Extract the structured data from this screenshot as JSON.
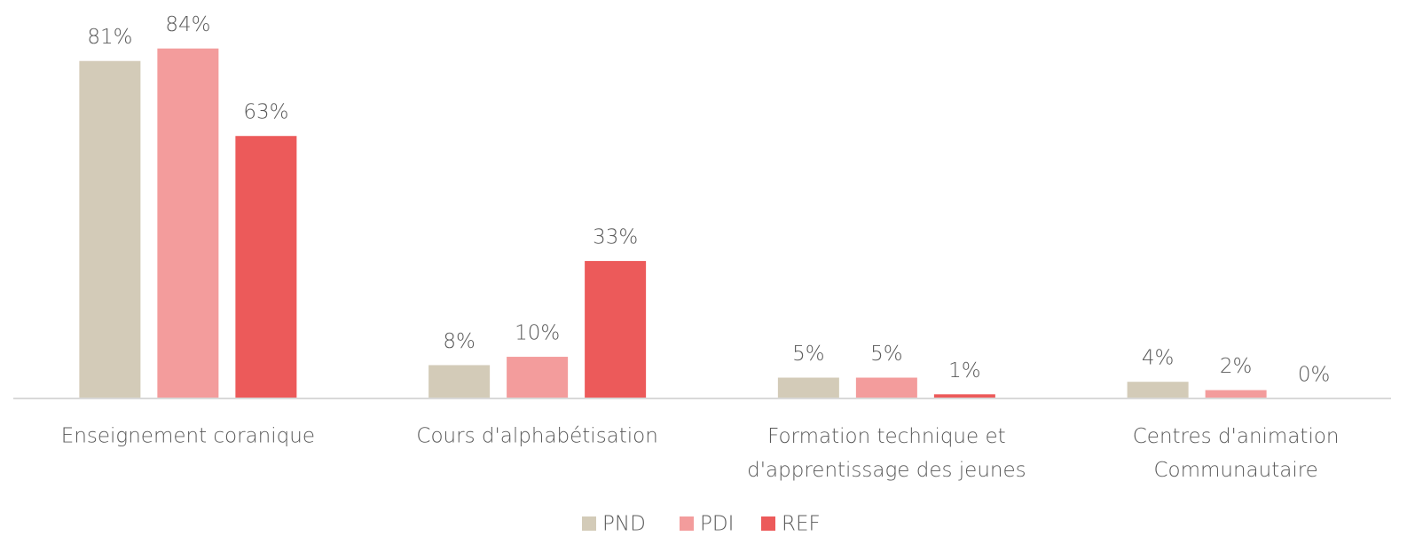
{
  "chart_data": {
    "type": "bar",
    "categories": [
      "Enseignement coranique",
      "Cours d'alphabétisation",
      "Formation technique et\nd'apprentissage des jeunes",
      "Centres d'animation\nCommunautaire"
    ],
    "series": [
      {
        "name": "PND",
        "color": "#d3cbb8",
        "values": [
          81,
          8,
          5,
          4
        ],
        "value_labels": [
          "81%",
          "8%",
          "5%",
          "4%"
        ]
      },
      {
        "name": "PDI",
        "color": "#f39c9c",
        "values": [
          84,
          10,
          5,
          2
        ],
        "value_labels": [
          "84%",
          "10%",
          "5%",
          "2%"
        ]
      },
      {
        "name": "REF",
        "color": "#ec5a5a",
        "values": [
          63,
          33,
          1,
          0
        ],
        "value_labels": [
          "63%",
          "33%",
          "1%",
          "0%"
        ]
      }
    ],
    "ylim": [
      0,
      95
    ],
    "legend": "bottom"
  }
}
